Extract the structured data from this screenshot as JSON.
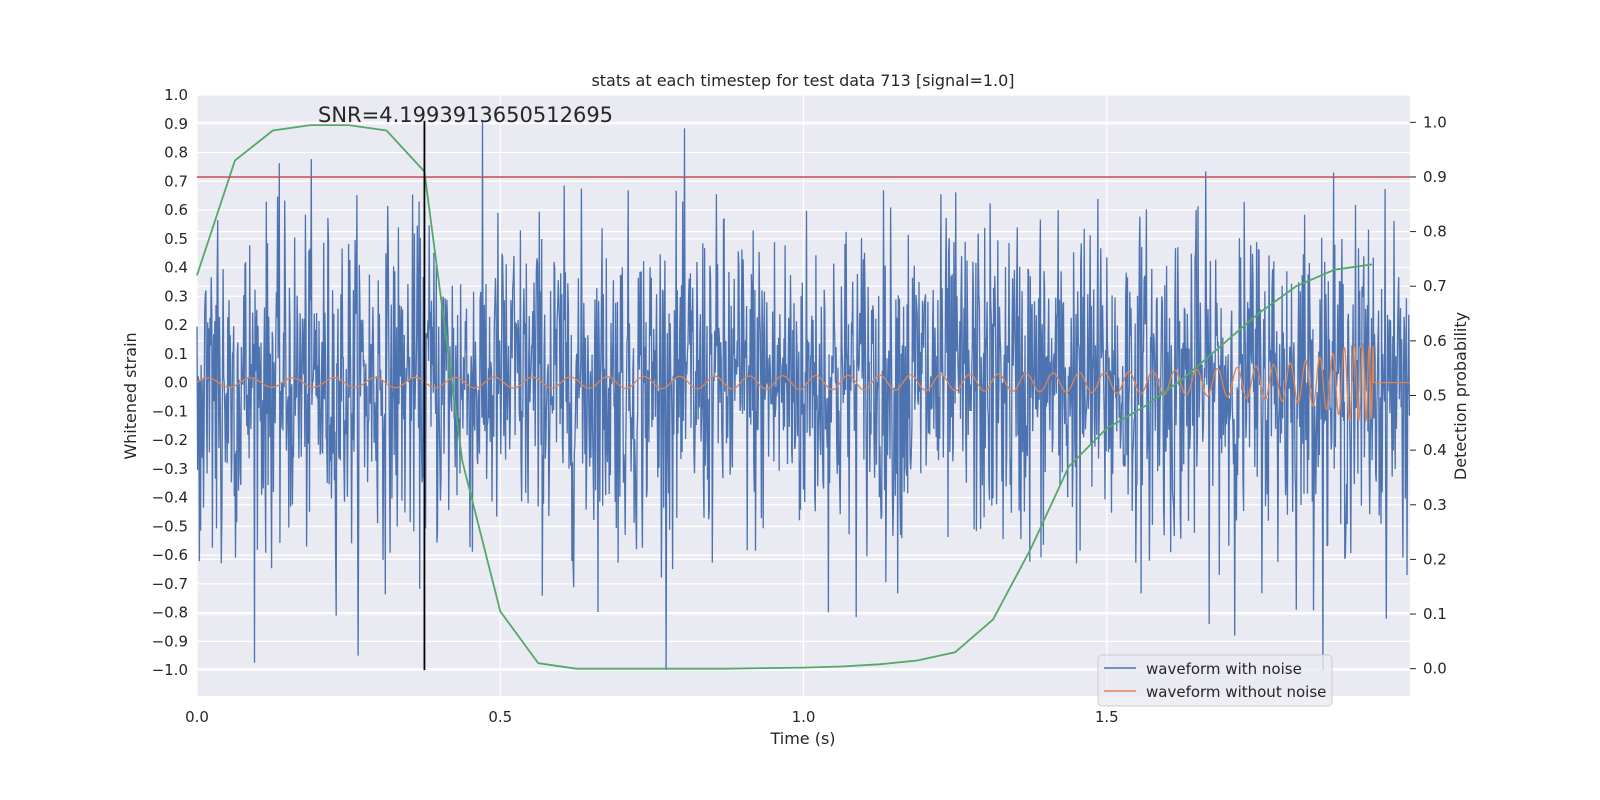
{
  "chart_data": {
    "type": "line",
    "title": "stats at each timestep for test data 713 [signal=1.0]",
    "xlabel": "Time (s)",
    "ylabel": "Whitened strain",
    "y2label": "Detection probability",
    "annotation": "SNR=4.1993913650512695",
    "xlim": [
      0.0,
      2.0
    ],
    "ylim": [
      -1.09,
      1.0
    ],
    "y2lim": [
      -0.05,
      1.05
    ],
    "xticks": [
      0.0,
      0.5,
      1.0,
      1.5
    ],
    "xtick_labels": [
      "0.0",
      "0.5",
      "1.0",
      "1.5"
    ],
    "yticks": [
      1.0,
      0.9,
      0.8,
      0.7,
      0.6,
      0.5,
      0.4,
      0.3,
      0.2,
      0.1,
      0.0,
      -0.1,
      -0.2,
      -0.3,
      -0.4,
      -0.5,
      -0.6,
      -0.7,
      -0.8,
      -0.9,
      -1.0
    ],
    "ytick_labels": [
      "1.0",
      "0.9",
      "0.8",
      "0.7",
      "0.6",
      "0.5",
      "0.4",
      "0.3",
      "0.2",
      "0.1",
      "0.0",
      "−0.1",
      "−0.2",
      "−0.3",
      "−0.4",
      "−0.5",
      "−0.6",
      "−0.7",
      "−0.8",
      "−0.9",
      "−1.0"
    ],
    "y2ticks": [
      1.0,
      0.9,
      0.8,
      0.7,
      0.6,
      0.5,
      0.4,
      0.3,
      0.2,
      0.1,
      0.0
    ],
    "y2tick_labels": [
      "1.0",
      "0.9",
      "0.8",
      "0.7",
      "0.6",
      "0.5",
      "0.4",
      "0.3",
      "0.2",
      "0.1",
      "0.0"
    ],
    "grid": true,
    "legend_position": "lower-right",
    "series": [
      {
        "name": "waveform with noise",
        "color": "#4c72b0",
        "axis": "left",
        "points": 2048,
        "amplitude_range": [
          -1.0,
          0.91
        ]
      },
      {
        "name": "waveform without noise",
        "color": "#dd8452",
        "axis": "left",
        "chirp_end_time": 1.94,
        "amplitude_range": [
          -0.16,
          0.13
        ]
      },
      {
        "color": "#55a868",
        "axis": "right",
        "x": [
          0.0,
          0.0625,
          0.125,
          0.1875,
          0.25,
          0.3125,
          0.375,
          0.4375,
          0.5,
          0.5625,
          0.625,
          0.6875,
          0.75,
          0.8125,
          0.875,
          0.9375,
          1.0,
          1.0625,
          1.125,
          1.1875,
          1.25,
          1.3125,
          1.375,
          1.4375,
          1.5,
          1.5625,
          1.625,
          1.6875,
          1.75,
          1.8125,
          1.875,
          1.9375
        ],
        "y": [
          0.72,
          0.93,
          0.985,
          0.995,
          0.995,
          0.985,
          0.91,
          0.38,
          0.105,
          0.01,
          0.0,
          0.0,
          0.0,
          0.0,
          0.0,
          0.001,
          0.002,
          0.004,
          0.008,
          0.015,
          0.03,
          0.09,
          0.22,
          0.37,
          0.44,
          0.48,
          0.53,
          0.59,
          0.65,
          0.7,
          0.73,
          0.74
        ]
      }
    ],
    "threshold": {
      "value": 0.9,
      "axis": "right",
      "color": "#c44e52"
    },
    "marker_line": {
      "x": 0.375,
      "y_range": [
        -1.0,
        0.91
      ],
      "color": "#000000"
    }
  }
}
